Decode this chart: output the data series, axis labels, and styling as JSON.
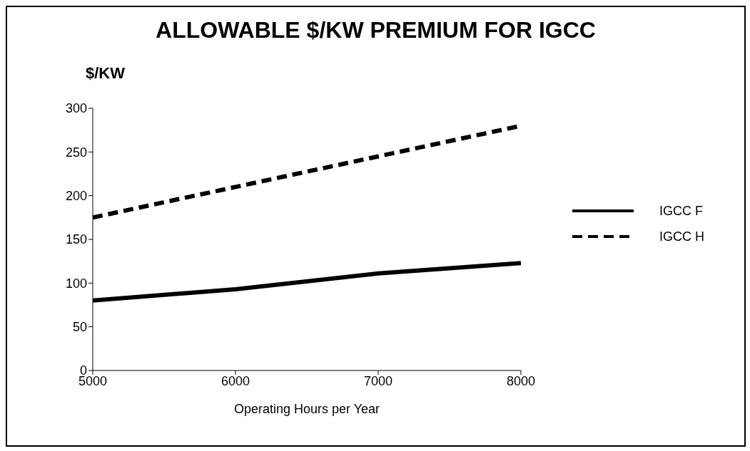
{
  "chart_data": {
    "type": "line",
    "title": "ALLOWABLE $/KW PREMIUM FOR IGCC",
    "ylabel": "$/KW",
    "xlabel": "Operating Hours per Year",
    "x": [
      5000,
      6000,
      7000,
      8000
    ],
    "series": [
      {
        "name": "IGCC F",
        "color": "#000000",
        "line_style": "solid",
        "values": [
          80,
          93,
          111,
          123
        ]
      },
      {
        "name": "IGCC H",
        "color": "#000000",
        "line_style": "dashed",
        "values": [
          175,
          210,
          245,
          280
        ]
      }
    ],
    "xlim": [
      5000,
      8000
    ],
    "xticks": [
      5000,
      6000,
      7000,
      8000
    ],
    "ylim": [
      0,
      300
    ],
    "yticks": [
      0,
      50,
      100,
      150,
      200,
      250,
      300
    ],
    "grid": false,
    "legend": "right",
    "marker": "none"
  }
}
